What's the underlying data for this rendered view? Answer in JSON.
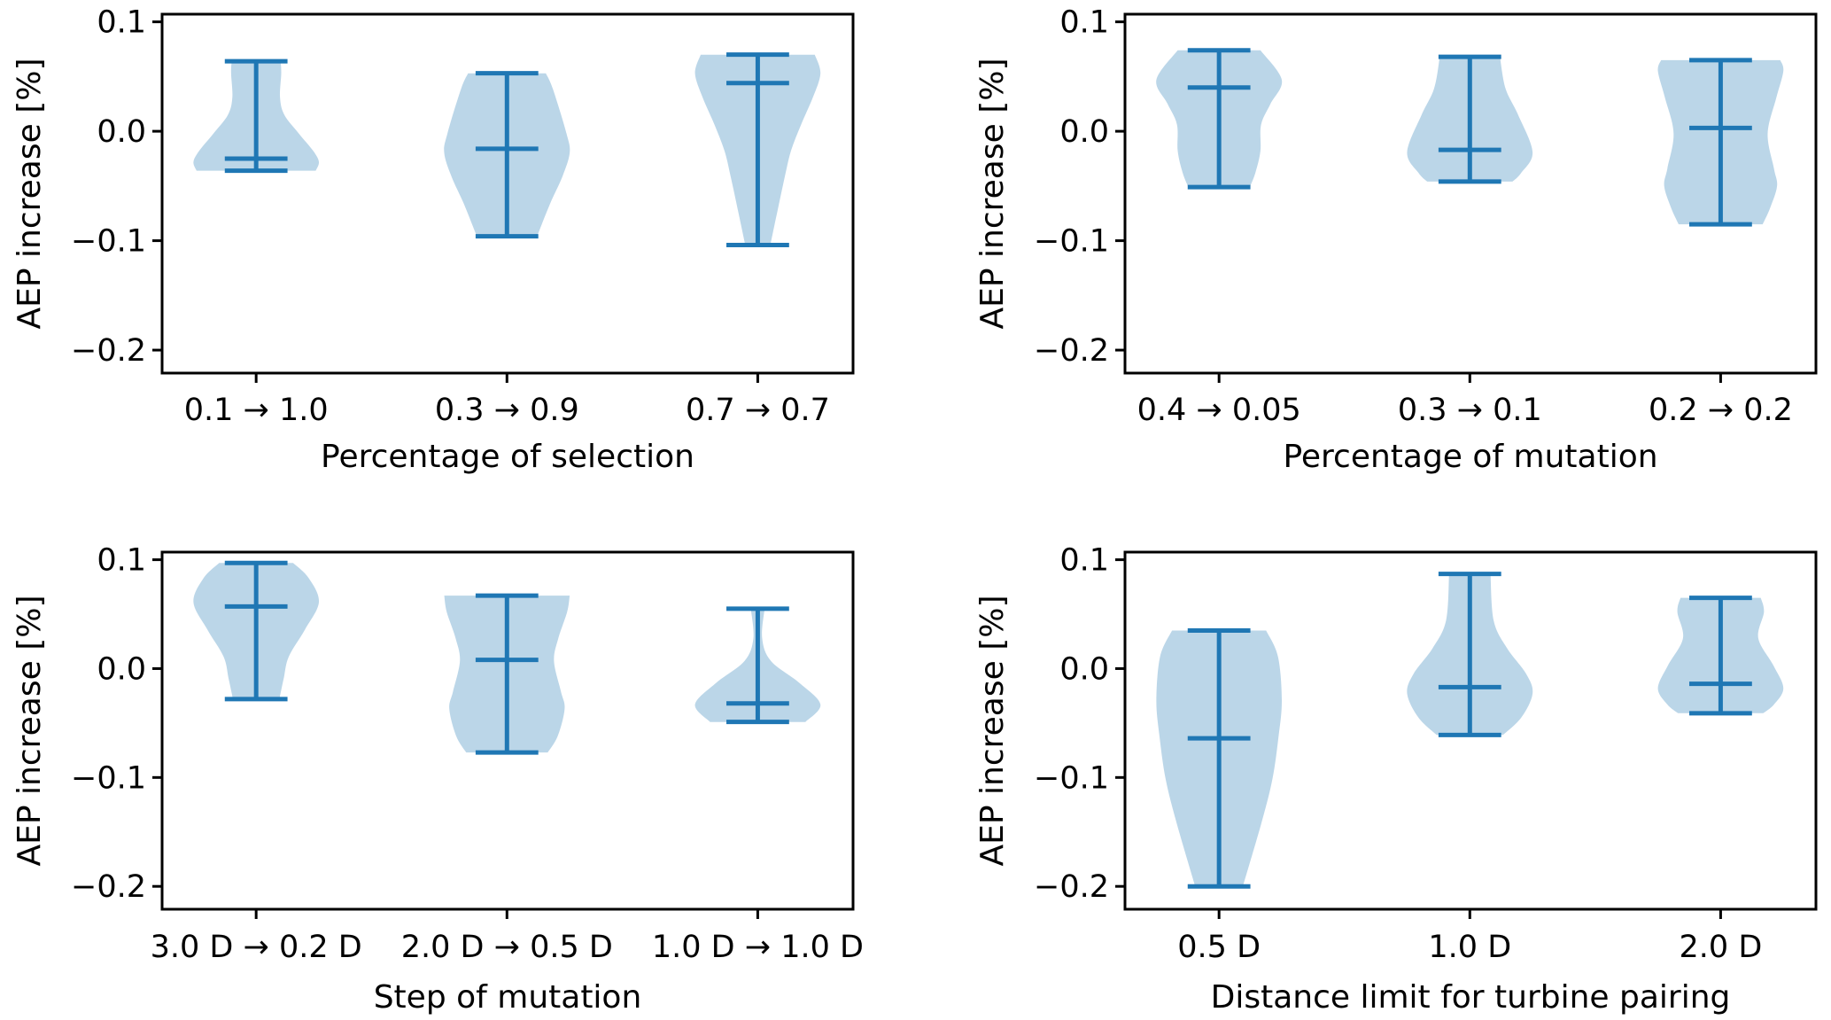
{
  "figure": {
    "description": "2x2 grid of violin plots showing AEP increase for different optimizer settings"
  },
  "chart_data": [
    {
      "type": "violin",
      "panel": "top-left",
      "xlabel": "Percentage of selection",
      "ylabel": "AEP increase [%]",
      "ylim": [
        -0.221,
        0.107
      ],
      "yticks": [
        0.1,
        0.0,
        -0.1,
        -0.2
      ],
      "ytick_labels": [
        "0.1",
        "0.0",
        "−0.1",
        "−0.2"
      ],
      "categories": [
        "0.1 → 1.0",
        "0.3 → 0.9",
        "0.7 → 0.7"
      ],
      "violins": [
        {
          "max": 0.064,
          "median": -0.025,
          "min": -0.036,
          "profile": [
            [
              0.064,
              0.39
            ],
            [
              0.053,
              0.4
            ],
            [
              0.031,
              0.38
            ],
            [
              0.015,
              0.45
            ],
            [
              -0.002,
              0.68
            ],
            [
              -0.018,
              0.91
            ],
            [
              -0.028,
              1.0
            ],
            [
              -0.036,
              0.95
            ]
          ]
        },
        {
          "max": 0.053,
          "median": -0.016,
          "min": -0.096,
          "profile": [
            [
              0.053,
              0.62
            ],
            [
              0.039,
              0.73
            ],
            [
              -0.002,
              0.95
            ],
            [
              -0.02,
              1.0
            ],
            [
              -0.042,
              0.88
            ],
            [
              -0.066,
              0.69
            ],
            [
              -0.096,
              0.48
            ]
          ]
        },
        {
          "max": 0.07,
          "median": 0.044,
          "min": -0.104,
          "profile": [
            [
              0.07,
              0.91
            ],
            [
              0.053,
              1.0
            ],
            [
              0.031,
              0.88
            ],
            [
              0.006,
              0.69
            ],
            [
              -0.018,
              0.53
            ],
            [
              -0.042,
              0.43
            ],
            [
              -0.074,
              0.31
            ],
            [
              -0.104,
              0.2
            ]
          ]
        }
      ]
    },
    {
      "type": "violin",
      "panel": "top-right",
      "xlabel": "Percentage of mutation",
      "ylabel": "AEP increase [%]",
      "ylim": [
        -0.221,
        0.107
      ],
      "yticks": [
        0.1,
        0.0,
        -0.1,
        -0.2
      ],
      "ytick_labels": [
        "0.1",
        "0.0",
        "−0.1",
        "−0.2"
      ],
      "categories": [
        "0.4 → 0.05",
        "0.3 → 0.1",
        "0.2 → 0.2"
      ],
      "violins": [
        {
          "max": 0.074,
          "median": 0.04,
          "min": -0.051,
          "profile": [
            [
              0.074,
              0.66
            ],
            [
              0.047,
              1.0
            ],
            [
              0.025,
              0.82
            ],
            [
              0.006,
              0.67
            ],
            [
              -0.018,
              0.66
            ],
            [
              -0.038,
              0.58
            ],
            [
              -0.051,
              0.49
            ]
          ]
        },
        {
          "max": 0.068,
          "median": -0.017,
          "min": -0.046,
          "profile": [
            [
              0.068,
              0.48
            ],
            [
              0.039,
              0.57
            ],
            [
              0.015,
              0.77
            ],
            [
              -0.019,
              1.0
            ],
            [
              -0.038,
              0.82
            ],
            [
              -0.046,
              0.68
            ]
          ]
        },
        {
          "max": 0.065,
          "median": 0.003,
          "min": -0.085,
          "profile": [
            [
              0.065,
              0.95
            ],
            [
              0.055,
              1.0
            ],
            [
              0.031,
              0.89
            ],
            [
              -0.002,
              0.75
            ],
            [
              -0.034,
              0.85
            ],
            [
              -0.05,
              0.9
            ],
            [
              -0.07,
              0.79
            ],
            [
              -0.085,
              0.67
            ]
          ]
        }
      ]
    },
    {
      "type": "violin",
      "panel": "bottom-left",
      "xlabel": "Step of mutation",
      "ylabel": "AEP increase [%]",
      "ylim": [
        -0.221,
        0.107
      ],
      "yticks": [
        0.1,
        0.0,
        -0.1,
        -0.2
      ],
      "ytick_labels": [
        "0.1",
        "0.0",
        "−0.1",
        "−0.2"
      ],
      "categories": [
        "3.0 D → 0.2 D",
        "2.0 D → 0.5 D",
        "1.0 D → 1.0 D"
      ],
      "violins": [
        {
          "max": 0.097,
          "median": 0.057,
          "min": -0.028,
          "profile": [
            [
              0.097,
              0.59
            ],
            [
              0.083,
              0.84
            ],
            [
              0.061,
              1.0
            ],
            [
              0.036,
              0.78
            ],
            [
              0.011,
              0.52
            ],
            [
              -0.009,
              0.44
            ],
            [
              -0.028,
              0.37
            ]
          ]
        },
        {
          "max": 0.067,
          "median": 0.008,
          "min": -0.077,
          "profile": [
            [
              0.067,
              1.0
            ],
            [
              0.052,
              0.96
            ],
            [
              0.028,
              0.82
            ],
            [
              0.007,
              0.75
            ],
            [
              -0.021,
              0.86
            ],
            [
              -0.037,
              0.92
            ],
            [
              -0.062,
              0.81
            ],
            [
              -0.077,
              0.65
            ]
          ]
        },
        {
          "max": 0.055,
          "median": -0.032,
          "min": -0.049,
          "profile": [
            [
              0.055,
              0.11
            ],
            [
              0.028,
              0.07
            ],
            [
              0.007,
              0.21
            ],
            [
              -0.013,
              0.66
            ],
            [
              -0.033,
              1.0
            ],
            [
              -0.049,
              0.76
            ]
          ]
        }
      ]
    },
    {
      "type": "violin",
      "panel": "bottom-right",
      "xlabel": "Distance limit for turbine pairing",
      "ylabel": "AEP increase [%]",
      "ylim": [
        -0.221,
        0.107
      ],
      "yticks": [
        0.1,
        0.0,
        -0.1,
        -0.2
      ],
      "ytick_labels": [
        "0.1",
        "0.0",
        "−0.1",
        "−0.2"
      ],
      "categories": [
        "0.5 D",
        "1.0 D",
        "2.0 D"
      ],
      "violins": [
        {
          "max": 0.035,
          "median": -0.064,
          "min": -0.2,
          "profile": [
            [
              0.035,
              0.75
            ],
            [
              0.011,
              0.94
            ],
            [
              -0.029,
              1.0
            ],
            [
              -0.062,
              0.95
            ],
            [
              -0.102,
              0.85
            ],
            [
              -0.143,
              0.67
            ],
            [
              -0.2,
              0.38
            ]
          ]
        },
        {
          "max": 0.087,
          "median": -0.017,
          "min": -0.061,
          "profile": [
            [
              0.087,
              0.33
            ],
            [
              0.044,
              0.38
            ],
            [
              0.019,
              0.59
            ],
            [
              -0.005,
              0.9
            ],
            [
              -0.023,
              1.0
            ],
            [
              -0.045,
              0.82
            ],
            [
              -0.061,
              0.53
            ]
          ]
        },
        {
          "max": 0.065,
          "median": -0.014,
          "min": -0.041,
          "profile": [
            [
              0.065,
              0.64
            ],
            [
              0.052,
              0.69
            ],
            [
              0.028,
              0.6
            ],
            [
              0.003,
              0.84
            ],
            [
              -0.018,
              1.0
            ],
            [
              -0.033,
              0.85
            ],
            [
              -0.041,
              0.68
            ]
          ]
        }
      ]
    }
  ],
  "colors": {
    "line": "#1f77b4",
    "fill": "#1f77b4",
    "fill_opacity": 0.3
  }
}
